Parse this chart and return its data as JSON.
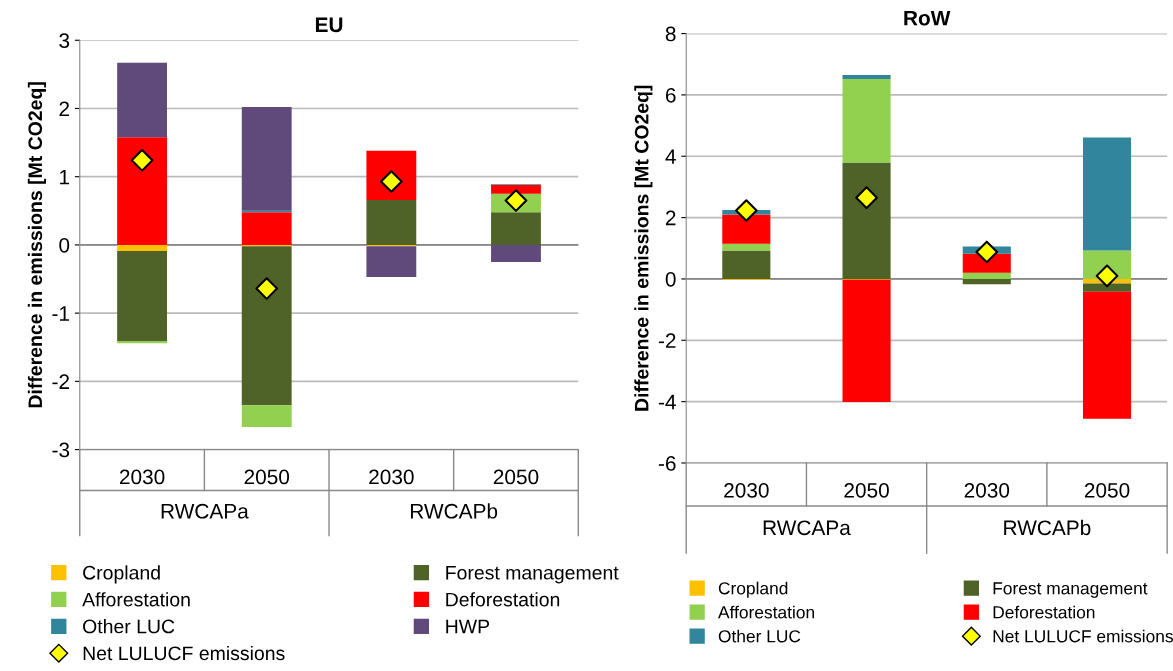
{
  "chart_data": [
    {
      "type": "bar",
      "title": "EU",
      "ylabel": "Difference in emissions [Mt CO2eq]",
      "categories": [
        "2030",
        "2050",
        "2030",
        "2050"
      ],
      "stacked": true,
      "ylim": [
        -3,
        3
      ],
      "yticks": [
        -3,
        -2,
        -1,
        0,
        1,
        2,
        3
      ],
      "grid": "y",
      "legend": "bottom",
      "annotations": [
        "RWCAPa",
        "RWCAPb"
      ],
      "series": [
        {
          "name": "Cropland",
          "color": "#ffc000",
          "values": [
            -0.09,
            -0.02,
            -0.02,
            0
          ]
        },
        {
          "name": "Forest management",
          "color": "#4f6228",
          "values": [
            -1.32,
            -2.33,
            0.66,
            0.48
          ]
        },
        {
          "name": "Afforestation",
          "color": "#92d050",
          "values": [
            -0.03,
            -0.32,
            0,
            0.27
          ]
        },
        {
          "name": "Deforestation",
          "color": "#ff0000",
          "values": [
            1.58,
            0.48,
            0.72,
            0.13
          ]
        },
        {
          "name": "Other LUC",
          "color": "#31859c",
          "values": [
            0,
            0.02,
            0,
            0.01
          ]
        },
        {
          "name": "HWP",
          "color": "#604a7b",
          "values": [
            1.09,
            1.52,
            -0.45,
            -0.25
          ]
        },
        {
          "name": "Net LULUCF emissions",
          "type": "scatter",
          "marker": "diamond",
          "color": "#ffff00",
          "values": [
            1.24,
            -0.64,
            0.93,
            0.65
          ]
        }
      ]
    },
    {
      "type": "bar",
      "title": "RoW",
      "ylabel": "Difference in emissions [Mt CO2eq]",
      "categories": [
        "2030",
        "2050",
        "2030",
        "2050"
      ],
      "stacked": true,
      "ylim": [
        -6,
        8
      ],
      "yticks": [
        -6,
        -4,
        -2,
        0,
        2,
        4,
        6,
        8
      ],
      "grid": "y",
      "legend": "bottom",
      "annotations": [
        "RWCAPa",
        "RWCAPb"
      ],
      "series": [
        {
          "name": "Cropland",
          "color": "#ffc000",
          "values": [
            -0.03,
            -0.03,
            0,
            -0.15
          ]
        },
        {
          "name": "Forest management",
          "color": "#4f6228",
          "values": [
            0.93,
            3.8,
            -0.17,
            -0.27
          ]
        },
        {
          "name": "Afforestation",
          "color": "#92d050",
          "values": [
            0.22,
            2.72,
            0.2,
            0.93
          ]
        },
        {
          "name": "Deforestation",
          "color": "#ff0000",
          "values": [
            0.95,
            -3.98,
            0.62,
            -4.14
          ]
        },
        {
          "name": "Other LUC",
          "color": "#31859c",
          "values": [
            0.15,
            0.13,
            0.24,
            3.68
          ]
        },
        {
          "name": "Net LULUCF emissions",
          "type": "scatter",
          "marker": "diamond",
          "color": "#ffff00",
          "values": [
            2.23,
            2.65,
            0.88,
            0.1
          ]
        }
      ]
    }
  ]
}
